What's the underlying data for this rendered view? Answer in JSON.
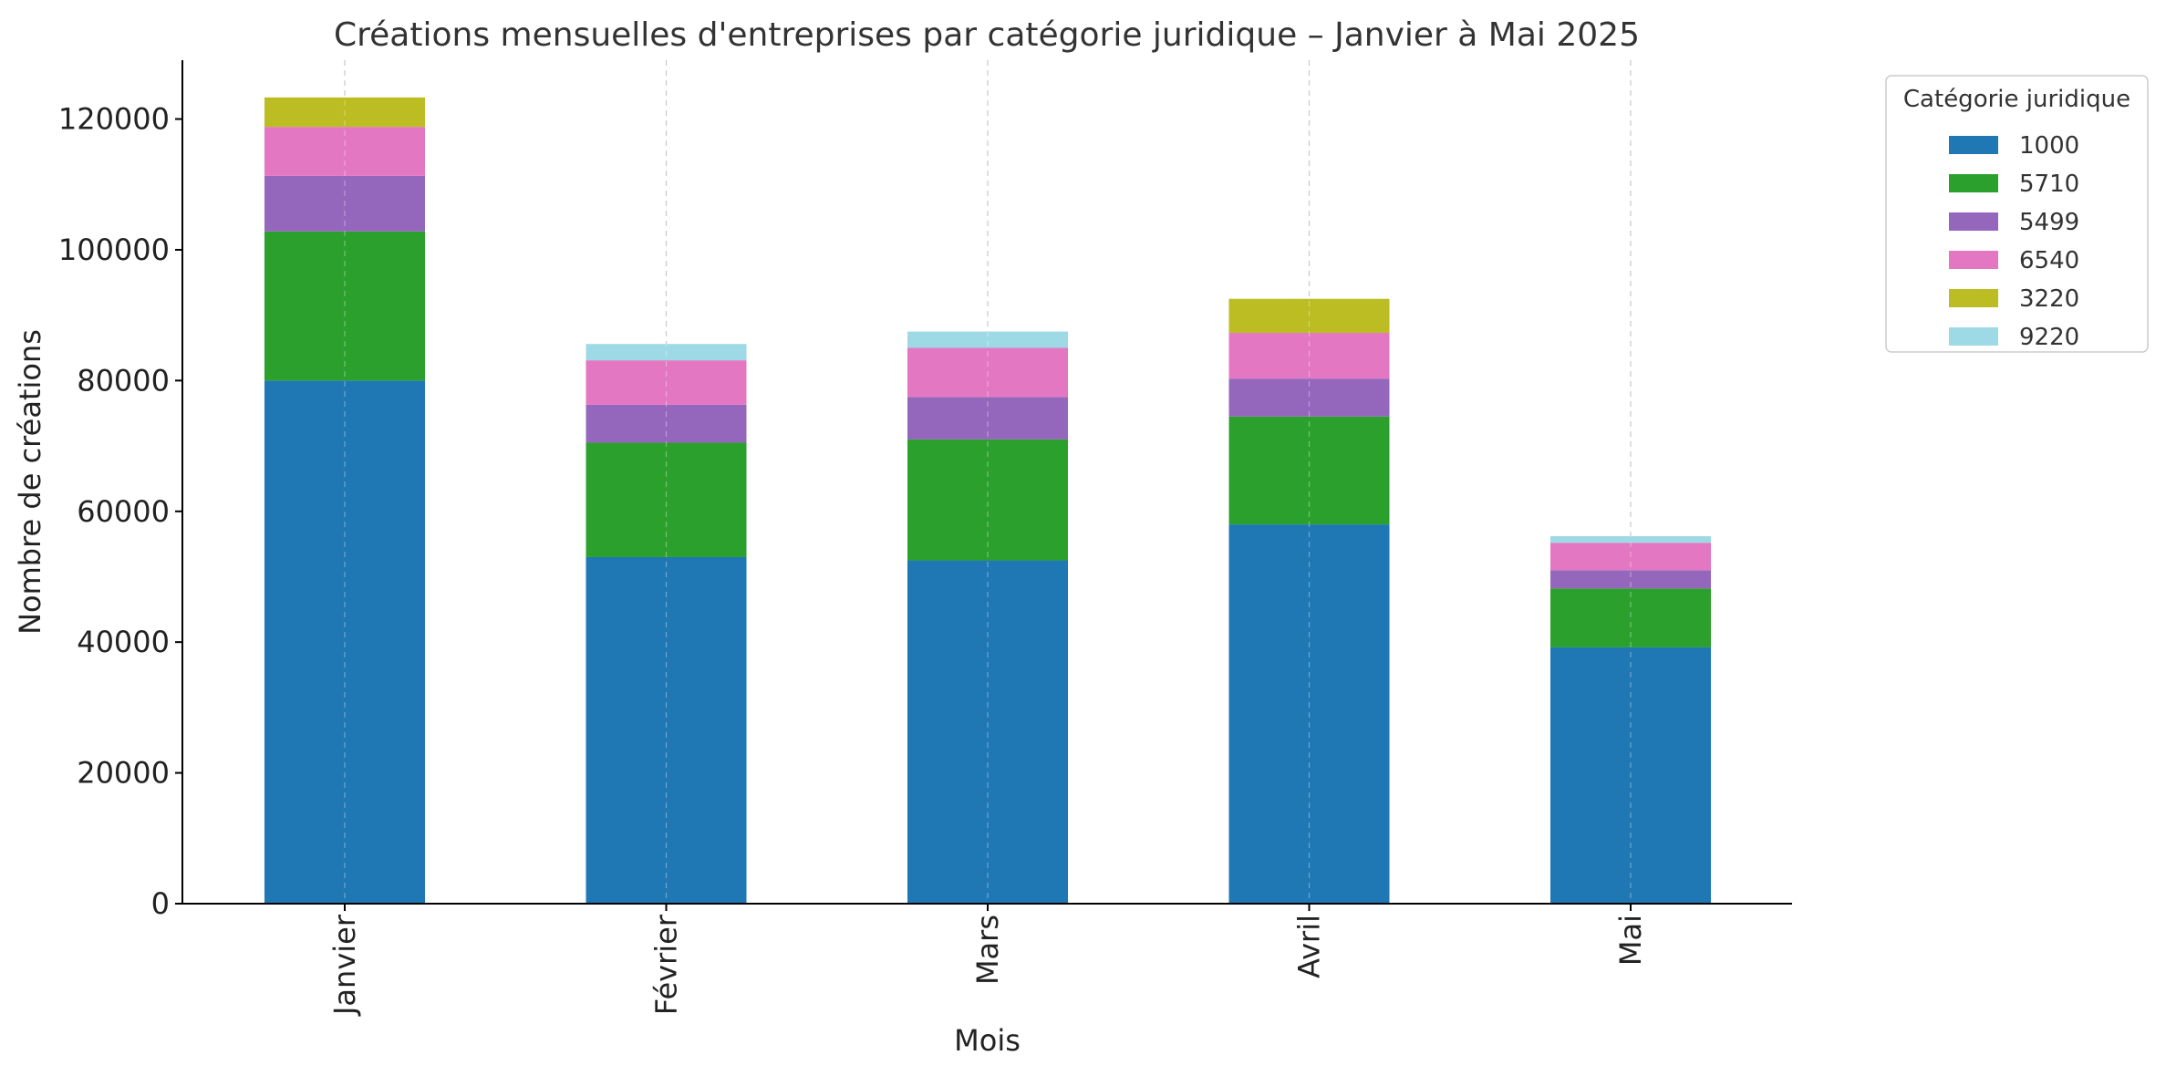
{
  "chart_data": {
    "type": "bar",
    "stacked": true,
    "title": "Créations mensuelles d'entreprises par catégorie juridique – Janvier à Mai 2025",
    "xlabel": "Mois",
    "ylabel": "Nombre de créations",
    "categories": [
      "Janvier",
      "Février",
      "Mars",
      "Avril",
      "Mai"
    ],
    "ylim": [
      0,
      129000
    ],
    "yticks": [
      0,
      20000,
      40000,
      60000,
      80000,
      100000,
      120000
    ],
    "ytick_labels": [
      "0",
      "20000",
      "40000",
      "60000",
      "80000",
      "100000",
      "120000"
    ],
    "grid": "vertical dashed",
    "legend": {
      "title": "Catégorie juridique",
      "placement": "top-right outside"
    },
    "series": [
      {
        "name": "1000",
        "color": "#1f77b4",
        "values": [
          80000,
          53000,
          52500,
          58000,
          39200
        ]
      },
      {
        "name": "5710",
        "color": "#2ca02c",
        "values": [
          22800,
          17500,
          18500,
          16500,
          9000
        ]
      },
      {
        "name": "5499",
        "color": "#9467bd",
        "values": [
          8500,
          5800,
          6500,
          5800,
          2800
        ]
      },
      {
        "name": "6540",
        "color": "#e377c2",
        "values": [
          7500,
          6800,
          7500,
          7000,
          4200
        ]
      },
      {
        "name": "3220",
        "color": "#bcbd22",
        "values": [
          4500,
          0,
          0,
          5200,
          0
        ]
      },
      {
        "name": "9220",
        "color": "#9edae5",
        "values": [
          0,
          2500,
          2500,
          0,
          1000
        ]
      }
    ]
  }
}
